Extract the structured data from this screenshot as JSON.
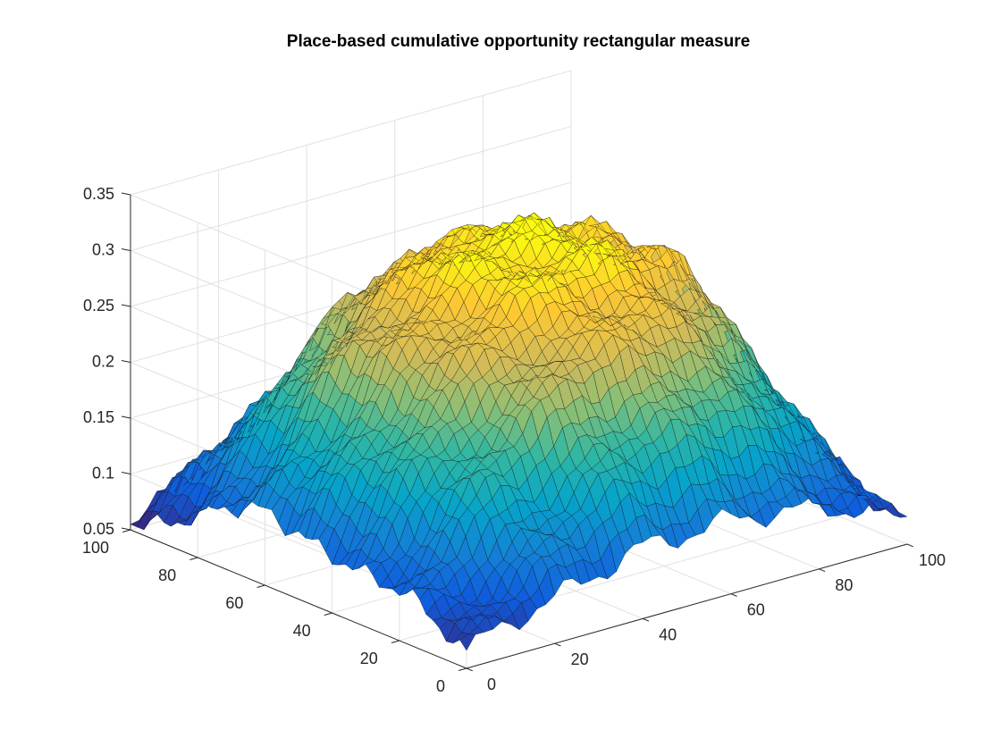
{
  "chart_data": {
    "type": "surface",
    "title": "Place-based cumulative opportunity rectangular measure",
    "xlabel": "",
    "ylabel": "",
    "zlabel": "",
    "x_ticks": [
      "0",
      "20",
      "40",
      "60",
      "80",
      "100"
    ],
    "y_ticks": [
      "0",
      "20",
      "40",
      "60",
      "80",
      "100"
    ],
    "z_ticks": [
      "0.05",
      "0.1",
      "0.15",
      "0.2",
      "0.25",
      "0.3",
      "0.35"
    ],
    "xlim": [
      0,
      100
    ],
    "ylim": [
      0,
      100
    ],
    "zlim": [
      0.05,
      0.35
    ],
    "grid": true,
    "box": false,
    "colormap": "parula",
    "colormap_stops": [
      "#352a87",
      "#0f5cdd",
      "#1481d6",
      "#06a4ca",
      "#2eb7a4",
      "#87bf77",
      "#d1bb59",
      "#fec832",
      "#f9fb0e"
    ],
    "surface": {
      "description_of_shape": "plateau surface peaking near the centre of the 100x100 grid",
      "z_samples_x": [
        0,
        20,
        40,
        60,
        80,
        100
      ],
      "z_samples_y": [
        0,
        20,
        40,
        60,
        80,
        100
      ],
      "z_values": [
        [
          0.06,
          0.09,
          0.12,
          0.12,
          0.1,
          0.07
        ],
        [
          0.09,
          0.18,
          0.24,
          0.25,
          0.2,
          0.1
        ],
        [
          0.11,
          0.23,
          0.29,
          0.3,
          0.27,
          0.12
        ],
        [
          0.11,
          0.24,
          0.3,
          0.31,
          0.27,
          0.11
        ],
        [
          0.09,
          0.19,
          0.26,
          0.27,
          0.22,
          0.09
        ],
        [
          0.06,
          0.1,
          0.12,
          0.11,
          0.09,
          0.06
        ]
      ],
      "peak_z": 0.31,
      "min_z": 0.06
    }
  }
}
